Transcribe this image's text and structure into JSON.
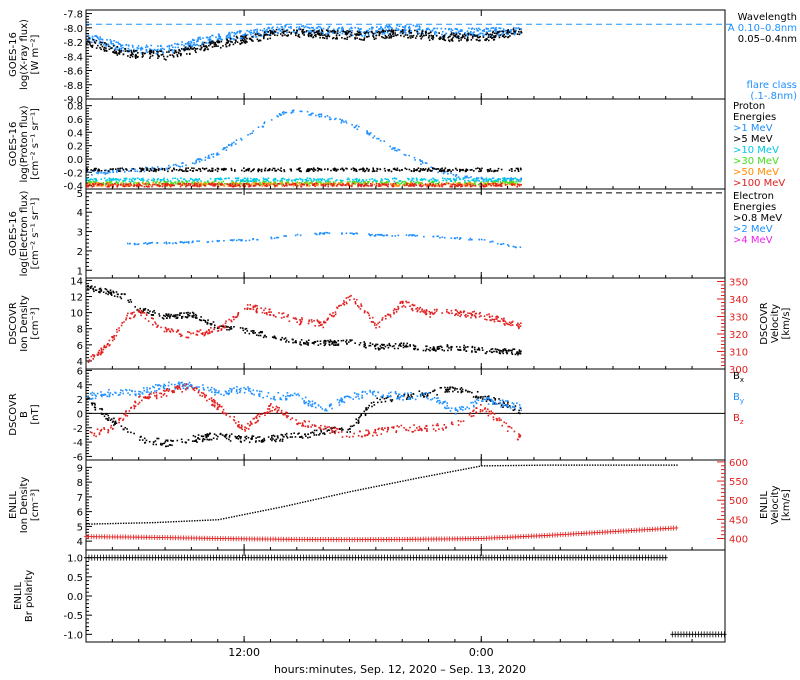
{
  "colors": {
    "black": "#000000",
    "blue": "#1e90ff",
    "cyan": "#00c8e6",
    "green": "#44dd22",
    "orange": "#ff8c00",
    "red": "#e21e1e",
    "magenta": "#ee22ee",
    "axis": "#000000"
  },
  "footer": {
    "xaxis_title": "hours:minutes, Sep. 12, 2020 – Sep. 13, 2020"
  },
  "chart_data": [
    {
      "id": "xray",
      "type": "scatter",
      "ylabel_lines": [
        "GOES-16",
        "log(X-ray flux)",
        "[W m⁻²]"
      ],
      "ylim": [
        -9.0,
        -7.75
      ],
      "yticks": [
        -9.0,
        -8.8,
        -8.6,
        -8.4,
        -8.2,
        -8.0,
        -7.8
      ],
      "ytick_labels": [
        "-9.0",
        "-8.8",
        "-8.6",
        "-8.4",
        "-8.2",
        "-8.0",
        "-7.8"
      ],
      "right_legend": [
        {
          "text": "Wavelength",
          "color": "#000000"
        },
        {
          "text": "A 0.10–0.8nm",
          "color": "#1e90ff"
        },
        {
          "text": "0.05–0.4nm",
          "color": "#000000"
        },
        {
          "text": "flare class",
          "color": "#1e90ff"
        },
        {
          "text": "(.1-.8nm)",
          "color": "#1e90ff"
        }
      ],
      "ref_lines": [
        {
          "y": -7.95,
          "label": "A",
          "color": "#1e90ff",
          "style": "dashed"
        }
      ],
      "series": [
        {
          "name": "0.10–0.8nm",
          "color": "#1e90ff",
          "x": [
            0,
            3,
            6,
            9,
            12,
            15,
            18,
            21,
            24,
            27,
            30,
            33
          ],
          "y": [
            -8.12,
            -8.28,
            -8.3,
            -8.16,
            -8.08,
            -8.0,
            -8.02,
            -8.05,
            -8.0,
            -8.06,
            -8.05,
            -8.04
          ]
        },
        {
          "name": "0.05–0.4nm",
          "color": "#000000",
          "x": [
            0,
            3,
            6,
            9,
            12,
            15,
            18,
            21,
            24,
            27,
            30,
            33
          ],
          "y": [
            -8.18,
            -8.35,
            -8.38,
            -8.25,
            -8.15,
            -8.05,
            -8.08,
            -8.1,
            -8.07,
            -8.12,
            -8.12,
            -8.05
          ]
        }
      ]
    },
    {
      "id": "proton",
      "type": "scatter",
      "ylabel_lines": [
        "GOES-16",
        "log(Proton flux)",
        "[cm⁻² s⁻¹ sr⁻¹]"
      ],
      "ylim": [
        -0.45,
        0.9
      ],
      "yticks": [
        -0.4,
        -0.2,
        0.0,
        0.2,
        0.4,
        0.6,
        0.8
      ],
      "ytick_labels": [
        "-0.4",
        "-0.2",
        "0.0",
        "0.2",
        "0.4",
        "0.6",
        "0.8"
      ],
      "right_legend": [
        {
          "text": "Proton",
          "color": "#000000"
        },
        {
          "text": "Energies",
          "color": "#000000"
        },
        {
          "text": ">1 MeV",
          "color": "#1e90ff"
        },
        {
          "text": ">5 MeV",
          "color": "#000000"
        },
        {
          "text": ">10 MeV",
          "color": "#00c8e6"
        },
        {
          "text": ">30 MeV",
          "color": "#44dd22"
        },
        {
          "text": ">50 MeV",
          "color": "#ff8c00"
        },
        {
          "text": ">100 MeV",
          "color": "#e21e1e"
        }
      ],
      "series": [
        {
          "name": ">1 MeV",
          "color": "#1e90ff",
          "x": [
            0,
            2,
            4,
            6,
            8,
            10,
            12,
            14,
            15,
            17,
            19,
            21,
            23,
            25,
            27,
            29,
            31,
            33
          ],
          "y": [
            -0.2,
            -0.18,
            -0.15,
            -0.12,
            -0.05,
            0.1,
            0.35,
            0.6,
            0.72,
            0.7,
            0.6,
            0.45,
            0.2,
            0.0,
            -0.2,
            -0.28,
            -0.3,
            -0.3
          ]
        },
        {
          "name": ">5 MeV",
          "color": "#000000",
          "x": [
            0,
            33
          ],
          "y": [
            -0.15,
            -0.15
          ]
        },
        {
          "name": ">10 MeV",
          "color": "#00c8e6",
          "x": [
            0,
            33
          ],
          "y": [
            -0.3,
            -0.3
          ]
        },
        {
          "name": ">30 MeV",
          "color": "#44dd22",
          "x": [
            0,
            33
          ],
          "y": [
            -0.35,
            -0.35
          ]
        },
        {
          "name": ">50 MeV",
          "color": "#ff8c00",
          "x": [
            0,
            33
          ],
          "y": [
            -0.37,
            -0.37
          ]
        },
        {
          "name": ">100 MeV",
          "color": "#e21e1e",
          "x": [
            0,
            33
          ],
          "y": [
            -0.38,
            -0.38
          ]
        }
      ]
    },
    {
      "id": "electron",
      "type": "scatter",
      "ylabel_lines": [
        "GOES-16",
        "log(Electron flux)",
        "[cm⁻² s⁻¹ sr⁻¹]"
      ],
      "ylim": [
        0.6,
        5.2
      ],
      "yticks": [
        1,
        2,
        3,
        4,
        5
      ],
      "ytick_labels": [
        "1",
        "2",
        "3",
        "4",
        "5"
      ],
      "ref_lines": [
        {
          "y": 5.0,
          "color": "#000000",
          "style": "dashed"
        }
      ],
      "right_legend": [
        {
          "text": "Electron",
          "color": "#000000"
        },
        {
          "text": "Energies",
          "color": "#000000"
        },
        {
          "text": ">0.8 MeV",
          "color": "#000000"
        },
        {
          "text": ">2 MeV",
          "color": "#1e90ff"
        },
        {
          "text": ">4 MeV",
          "color": "#ee22ee"
        }
      ],
      "series": [
        {
          "name": ">2 MeV",
          "color": "#1e90ff",
          "x": [
            3,
            6,
            8,
            10,
            12,
            14,
            16,
            18,
            20,
            22,
            24,
            26,
            28,
            30,
            33
          ],
          "y": [
            2.4,
            2.45,
            2.5,
            2.55,
            2.6,
            2.7,
            2.85,
            2.95,
            2.95,
            2.85,
            2.85,
            2.8,
            2.7,
            2.6,
            2.2
          ]
        }
      ]
    },
    {
      "id": "dscovr_density",
      "type": "scatter",
      "ylabel_lines": [
        "DSCOVR",
        "Ion Density",
        "[cm⁻³]"
      ],
      "ylim": [
        3,
        14.3
      ],
      "yticks": [
        4,
        6,
        8,
        10,
        12,
        14
      ],
      "ytick_labels": [
        "4",
        "6",
        "8",
        "10",
        "12",
        "14"
      ],
      "y2label_lines": [
        "DSCOVR",
        "Velocity",
        "[km/s]"
      ],
      "y2lim": [
        300,
        352
      ],
      "y2ticks": [
        300,
        310,
        320,
        330,
        340,
        350
      ],
      "y2tick_labels": [
        "300",
        "310",
        "320",
        "330",
        "340",
        "350"
      ],
      "series": [
        {
          "name": "Ion Density",
          "color": "#000000",
          "axis": "left",
          "x": [
            0,
            2,
            3,
            4,
            6,
            8,
            10,
            12,
            14,
            16,
            18,
            20,
            22,
            24,
            26,
            28,
            30,
            33
          ],
          "y": [
            13.3,
            12.5,
            12.0,
            10.5,
            9.6,
            9.8,
            8.3,
            7.8,
            7.2,
            6.4,
            6.3,
            6.5,
            5.8,
            6.0,
            5.6,
            5.8,
            5.4,
            5.2
          ]
        },
        {
          "name": "Velocity",
          "color": "#e21e1e",
          "axis": "right",
          "x": [
            0,
            1,
            2,
            3,
            4,
            6,
            8,
            10,
            11,
            12,
            14,
            16,
            18,
            20,
            21,
            22,
            24,
            26,
            27,
            30,
            33
          ],
          "y": [
            305,
            310,
            318,
            330,
            333,
            322,
            320,
            323,
            328,
            336,
            333,
            328,
            326,
            342,
            335,
            325,
            338,
            332,
            333,
            331,
            325
          ]
        }
      ]
    },
    {
      "id": "dscovr_bfield",
      "type": "scatter",
      "ylabel_lines": [
        "DSCOVR",
        "B",
        "[nT]"
      ],
      "ylim": [
        -6.5,
        6.2
      ],
      "yticks": [
        -6,
        -4,
        -2,
        0,
        2,
        4,
        6
      ],
      "ytick_labels": [
        "-6",
        "-4",
        "-2",
        "0",
        "2",
        "4",
        "6"
      ],
      "ref_lines": [
        {
          "y": 0,
          "color": "#000000",
          "style": "solid"
        }
      ],
      "right_legend": [
        {
          "text": "Bx",
          "color": "#000000"
        },
        {
          "text": "By",
          "color": "#1e90ff"
        },
        {
          "text": "Bz",
          "color": "#e21e1e"
        }
      ],
      "series": [
        {
          "name": "Bx",
          "color": "#000000",
          "x": [
            0,
            2,
            4,
            6,
            8,
            10,
            12,
            14,
            16,
            18,
            20,
            22,
            24,
            26,
            28,
            30,
            33
          ],
          "y": [
            2,
            -1,
            -3.5,
            -4,
            -3.5,
            -3,
            -3.5,
            -3.5,
            -3.0,
            -2.5,
            -2.0,
            2.0,
            2.5,
            3.0,
            3.5,
            2.5,
            0.5
          ]
        },
        {
          "name": "By",
          "color": "#1e90ff",
          "x": [
            0,
            2,
            4,
            6,
            8,
            10,
            12,
            14,
            16,
            18,
            20,
            22,
            24,
            26,
            28,
            30,
            33
          ],
          "y": [
            2.5,
            3,
            3,
            4,
            4,
            3,
            3.5,
            2.5,
            2.5,
            0.5,
            2.5,
            3.0,
            2.5,
            2.5,
            0.5,
            2.0,
            1.0
          ]
        },
        {
          "name": "Bz",
          "color": "#e21e1e",
          "x": [
            0,
            2,
            4,
            6,
            8,
            10,
            12,
            14,
            16,
            18,
            20,
            22,
            24,
            26,
            28,
            30,
            33
          ],
          "y": [
            -3,
            -2,
            2,
            3,
            4,
            1,
            -2,
            1,
            -1,
            -2,
            -3,
            -2.5,
            -2,
            -2,
            -1.5,
            1.0,
            -3.5
          ]
        }
      ]
    },
    {
      "id": "enlil_density",
      "type": "scatter",
      "ylabel_lines": [
        "ENLIL",
        "Ion Density",
        "[cm⁻³]"
      ],
      "ylim": [
        3.4,
        9.5
      ],
      "yticks": [
        4,
        5,
        6,
        7,
        8,
        9
      ],
      "ytick_labels": [
        "4",
        "5",
        "6",
        "7",
        "8",
        "9"
      ],
      "y2label_lines": [
        "ENLIL",
        "Velocity",
        "[km/s]"
      ],
      "y2lim": [
        370,
        605
      ],
      "y2ticks": [
        400,
        450,
        500,
        550,
        600
      ],
      "y2tick_labels": [
        "400",
        "450",
        "500",
        "550",
        "600"
      ],
      "series": [
        {
          "name": "Ion Density",
          "color": "#000000",
          "axis": "left",
          "x": [
            0,
            5,
            10,
            15,
            20,
            25,
            30,
            35,
            40,
            45
          ],
          "y": [
            5.2,
            5.3,
            5.5,
            6.4,
            7.4,
            8.3,
            9.15,
            9.2,
            9.2,
            9.2
          ]
        },
        {
          "name": "Velocity",
          "color": "#e21e1e",
          "axis": "right",
          "x": [
            0,
            5,
            10,
            15,
            20,
            25,
            30,
            35,
            40,
            45
          ],
          "y": [
            405,
            403,
            400,
            398,
            397,
            398,
            400,
            408,
            418,
            428
          ]
        }
      ]
    },
    {
      "id": "enlil_polarity",
      "type": "scatter",
      "ylabel_lines": [
        "ENLIL",
        "Br polarity"
      ],
      "ylim": [
        -1.2,
        1.2
      ],
      "yticks": [
        -1.0,
        -0.5,
        0.0,
        0.5,
        1.0
      ],
      "ytick_labels": [
        "-1.0",
        "-0.5",
        "0.0",
        "0.5",
        "1.0"
      ],
      "series": [
        {
          "name": "Br polarity",
          "color": "#000000",
          "x": [
            0,
            44,
            44.5,
            48.5
          ],
          "y": [
            1.0,
            1.0,
            -1.0,
            -1.0
          ]
        }
      ]
    }
  ],
  "x_axis": {
    "range_hours": [
      0,
      48.5
    ],
    "ticks": [
      12,
      30
    ],
    "tick_labels": [
      "12:00",
      "0:00"
    ]
  }
}
